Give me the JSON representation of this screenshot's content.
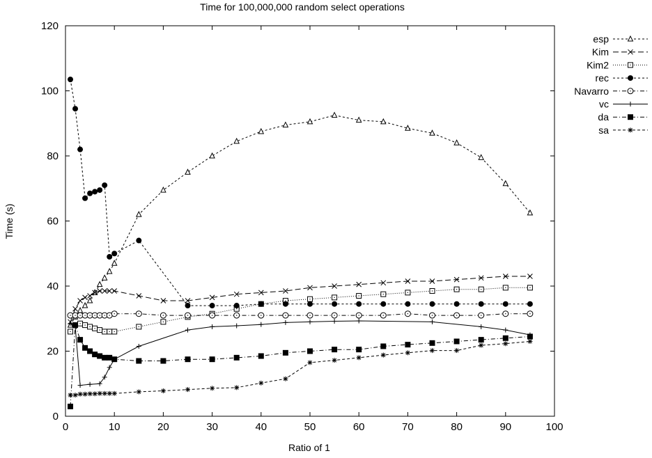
{
  "chart_data": {
    "type": "line",
    "title": "Time for 100,000,000 random select operations",
    "xlabel": "Ratio of 1",
    "ylabel": "Time (s)",
    "xlim": [
      0,
      100
    ],
    "ylim": [
      0,
      120
    ],
    "xticks": [
      0,
      10,
      20,
      30,
      40,
      50,
      60,
      70,
      80,
      90,
      100
    ],
    "yticks": [
      0,
      20,
      40,
      60,
      80,
      100,
      120
    ],
    "grid": false,
    "legend_position": "top-right outside",
    "series": [
      {
        "name": "esp",
        "marker": "triangle",
        "dash": "3,3",
        "points": [
          [
            1,
            28
          ],
          [
            2,
            30.5
          ],
          [
            3,
            32.5
          ],
          [
            4,
            34
          ],
          [
            5,
            35.5
          ],
          [
            6,
            38
          ],
          [
            7,
            40.5
          ],
          [
            8,
            42.5
          ],
          [
            9,
            44.5
          ],
          [
            10,
            47
          ],
          [
            15,
            62
          ],
          [
            20,
            69.5
          ],
          [
            25,
            75
          ],
          [
            30,
            80
          ],
          [
            35,
            84.5
          ],
          [
            40,
            87.5
          ],
          [
            45,
            89.5
          ],
          [
            50,
            90.5
          ],
          [
            55,
            92.5
          ],
          [
            60,
            91
          ],
          [
            65,
            90.5
          ],
          [
            70,
            88.5
          ],
          [
            75,
            87
          ],
          [
            80,
            84
          ],
          [
            85,
            79.5
          ],
          [
            90,
            71.5
          ],
          [
            95,
            62.5
          ]
        ]
      },
      {
        "name": "Kim",
        "marker": "x",
        "dash": "8,4",
        "points": [
          [
            1,
            29
          ],
          [
            2,
            33
          ],
          [
            3,
            35.5
          ],
          [
            4,
            36.5
          ],
          [
            5,
            37
          ],
          [
            6,
            38
          ],
          [
            7,
            38.5
          ],
          [
            8,
            38.5
          ],
          [
            9,
            38.5
          ],
          [
            10,
            38.5
          ],
          [
            15,
            37
          ],
          [
            20,
            35.5
          ],
          [
            25,
            35.5
          ],
          [
            30,
            36.5
          ],
          [
            35,
            37.5
          ],
          [
            40,
            38
          ],
          [
            45,
            38.5
          ],
          [
            50,
            39.5
          ],
          [
            55,
            40
          ],
          [
            60,
            40.5
          ],
          [
            65,
            41
          ],
          [
            70,
            41.5
          ],
          [
            75,
            41.5
          ],
          [
            80,
            42
          ],
          [
            85,
            42.5
          ],
          [
            90,
            43
          ],
          [
            95,
            43
          ]
        ]
      },
      {
        "name": "Kim2",
        "marker": "square-open",
        "dash": "1,2",
        "points": [
          [
            1,
            26
          ],
          [
            2,
            28
          ],
          [
            3,
            28.5
          ],
          [
            4,
            28
          ],
          [
            5,
            27.5
          ],
          [
            6,
            27
          ],
          [
            7,
            26.5
          ],
          [
            8,
            26
          ],
          [
            9,
            26
          ],
          [
            10,
            26
          ],
          [
            15,
            27.5
          ],
          [
            20,
            29
          ],
          [
            25,
            30.5
          ],
          [
            30,
            31.5
          ],
          [
            35,
            33
          ],
          [
            40,
            34.5
          ],
          [
            45,
            35.5
          ],
          [
            50,
            36
          ],
          [
            55,
            36.5
          ],
          [
            60,
            37
          ],
          [
            65,
            37.5
          ],
          [
            70,
            38
          ],
          [
            75,
            38.5
          ],
          [
            80,
            39
          ],
          [
            85,
            39
          ],
          [
            90,
            39.5
          ],
          [
            95,
            39.5
          ]
        ]
      },
      {
        "name": "rec",
        "marker": "circle-filled",
        "dash": "3,3",
        "points": [
          [
            1,
            103.5
          ],
          [
            2,
            94.5
          ],
          [
            3,
            82
          ],
          [
            4,
            67
          ],
          [
            5,
            68.5
          ],
          [
            6,
            69
          ],
          [
            7,
            69.5
          ],
          [
            8,
            71
          ],
          [
            9,
            49
          ],
          [
            10,
            50
          ],
          [
            15,
            54
          ],
          [
            25,
            34
          ],
          [
            30,
            34
          ],
          [
            35,
            34
          ],
          [
            40,
            34.5
          ],
          [
            45,
            34.5
          ],
          [
            50,
            34.5
          ],
          [
            55,
            34.5
          ],
          [
            60,
            34.5
          ],
          [
            65,
            34.5
          ],
          [
            70,
            34.5
          ],
          [
            75,
            34.5
          ],
          [
            80,
            34.5
          ],
          [
            85,
            34.5
          ],
          [
            90,
            34.5
          ],
          [
            95,
            34.5
          ]
        ]
      },
      {
        "name": "Navarro",
        "marker": "circle-open",
        "dash": "6,3,1,3",
        "points": [
          [
            1,
            31
          ],
          [
            2,
            31
          ],
          [
            3,
            31
          ],
          [
            4,
            31
          ],
          [
            5,
            31
          ],
          [
            6,
            31
          ],
          [
            7,
            31
          ],
          [
            8,
            31
          ],
          [
            9,
            31
          ],
          [
            10,
            31.5
          ],
          [
            15,
            31.5
          ],
          [
            20,
            31
          ],
          [
            25,
            31
          ],
          [
            30,
            31
          ],
          [
            35,
            31
          ],
          [
            40,
            31
          ],
          [
            45,
            31
          ],
          [
            50,
            31
          ],
          [
            55,
            31
          ],
          [
            60,
            31
          ],
          [
            65,
            31
          ],
          [
            70,
            31.5
          ],
          [
            75,
            31
          ],
          [
            80,
            31
          ],
          [
            85,
            31
          ],
          [
            90,
            31.5
          ],
          [
            95,
            31.5
          ]
        ]
      },
      {
        "name": "vc",
        "marker": "plus",
        "dash": "",
        "points": [
          [
            1,
            28.5
          ],
          [
            2,
            27.5
          ],
          [
            3,
            9.5
          ],
          [
            5,
            9.8
          ],
          [
            7,
            10
          ],
          [
            8,
            12
          ],
          [
            9,
            15
          ],
          [
            10,
            17.5
          ],
          [
            15,
            21.5
          ],
          [
            25,
            26.5
          ],
          [
            30,
            27.5
          ],
          [
            35,
            27.8
          ],
          [
            40,
            28.2
          ],
          [
            45,
            28.8
          ],
          [
            50,
            29
          ],
          [
            55,
            29.2
          ],
          [
            60,
            29.3
          ],
          [
            75,
            29
          ],
          [
            85,
            27.5
          ],
          [
            90,
            26.5
          ],
          [
            95,
            25
          ]
        ]
      },
      {
        "name": "da",
        "marker": "square-filled",
        "dash": "6,3,1,3",
        "points": [
          [
            1,
            3
          ],
          [
            2,
            28
          ],
          [
            3,
            23.5
          ],
          [
            4,
            21
          ],
          [
            5,
            20
          ],
          [
            6,
            19
          ],
          [
            7,
            18.5
          ],
          [
            8,
            18
          ],
          [
            9,
            18
          ],
          [
            10,
            17.5
          ],
          [
            15,
            17
          ],
          [
            20,
            17
          ],
          [
            25,
            17.5
          ],
          [
            30,
            17.5
          ],
          [
            35,
            18
          ],
          [
            40,
            18.5
          ],
          [
            45,
            19.5
          ],
          [
            50,
            20
          ],
          [
            55,
            20.5
          ],
          [
            60,
            20.5
          ],
          [
            65,
            21.5
          ],
          [
            70,
            22
          ],
          [
            75,
            22.5
          ],
          [
            80,
            23
          ],
          [
            85,
            23.5
          ],
          [
            90,
            24
          ],
          [
            95,
            24.5
          ]
        ]
      },
      {
        "name": "sa",
        "marker": "star",
        "dash": "4,3",
        "points": [
          [
            1,
            6.5
          ],
          [
            2,
            6.5
          ],
          [
            3,
            6.8
          ],
          [
            4,
            6.8
          ],
          [
            5,
            6.9
          ],
          [
            6,
            6.9
          ],
          [
            7,
            7
          ],
          [
            8,
            7
          ],
          [
            9,
            7
          ],
          [
            10,
            7
          ],
          [
            15,
            7.5
          ],
          [
            20,
            7.8
          ],
          [
            25,
            8.2
          ],
          [
            30,
            8.6
          ],
          [
            35,
            8.8
          ],
          [
            40,
            10.2
          ],
          [
            45,
            11.5
          ],
          [
            50,
            16.5
          ],
          [
            55,
            17.2
          ],
          [
            60,
            18
          ],
          [
            65,
            18.8
          ],
          [
            70,
            19.5
          ],
          [
            75,
            20.2
          ],
          [
            80,
            20.2
          ],
          [
            85,
            21.8
          ],
          [
            90,
            22.3
          ],
          [
            95,
            23
          ]
        ]
      }
    ]
  }
}
